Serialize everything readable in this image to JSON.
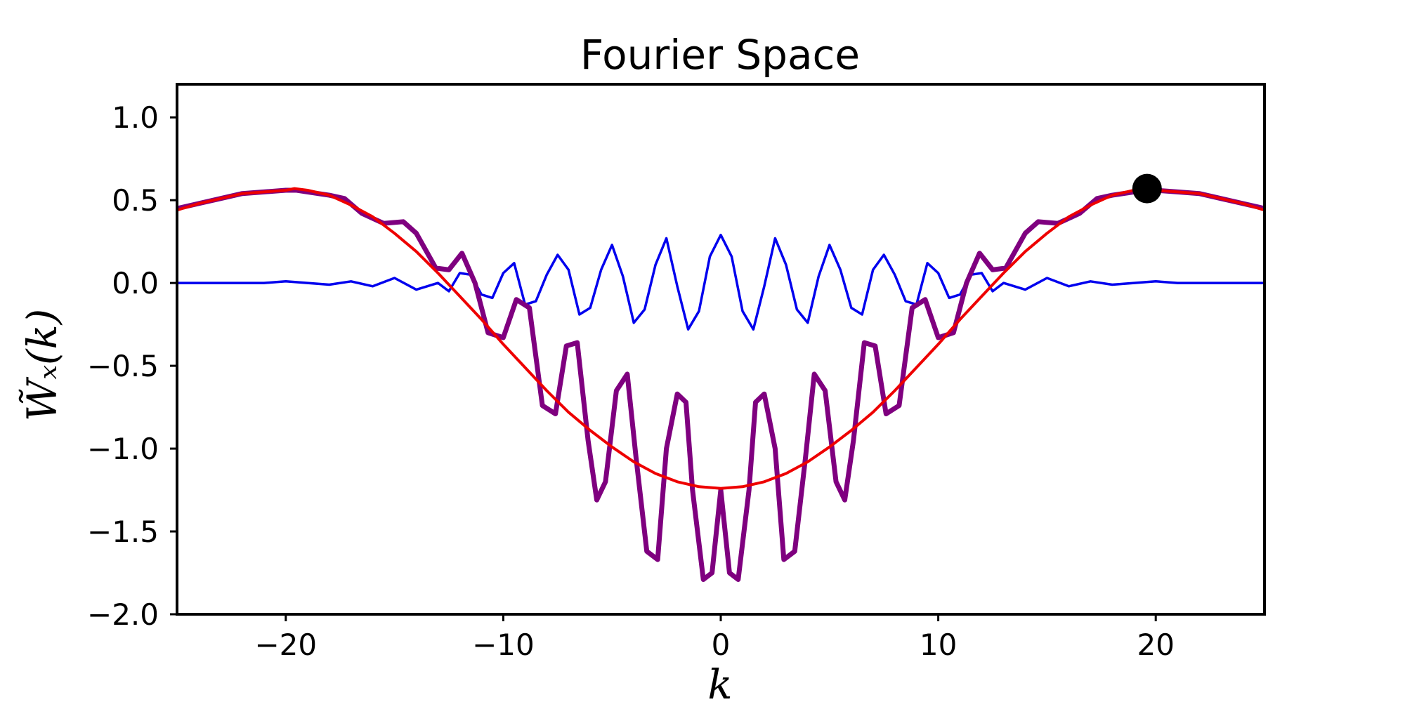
{
  "chart_data": {
    "type": "line",
    "title": "Fourier Space",
    "xlabel": "k",
    "ylabel": "W̃ₓ(k)",
    "xlim": [
      -25,
      25
    ],
    "ylim": [
      -2.0,
      1.2
    ],
    "grid": false,
    "x_ticks": [
      -20,
      -10,
      0,
      10,
      20
    ],
    "x_tick_labels": [
      "−20",
      "−10",
      "0",
      "10",
      "20"
    ],
    "y_ticks": [
      1.0,
      0.5,
      0.0,
      -0.5,
      -1.0,
      -1.5,
      -2.0
    ],
    "y_tick_labels": [
      "1.0",
      "0.5",
      "0.0",
      "−0.5",
      "−1.0",
      "−1.5",
      "−2.0"
    ],
    "series": [
      {
        "color": "#0000ee",
        "x": [
          -25,
          -24,
          -23,
          -22,
          -21,
          -20,
          -19,
          -18,
          -17,
          -16,
          -15,
          -14,
          -13,
          -12.5,
          -12,
          -11.5,
          -11,
          -10.5,
          -10,
          -9.5,
          -9,
          -8.5,
          -8,
          -7.5,
          -7,
          -6.5,
          -6,
          -5.5,
          -5,
          -4.5,
          -4,
          -3.5,
          -3,
          -2.5,
          -2,
          -1.5,
          -1,
          -0.5,
          0,
          0.5,
          1,
          1.5,
          2,
          2.5,
          3,
          3.5,
          4,
          4.5,
          5,
          5.5,
          6,
          6.5,
          7,
          7.5,
          8,
          8.5,
          9,
          9.5,
          10,
          10.5,
          11,
          11.5,
          12,
          12.5,
          13,
          14,
          15,
          16,
          17,
          18,
          19,
          20,
          21,
          22,
          23,
          24,
          25
        ],
        "values": [
          0.0,
          0.0,
          0.0,
          0.0,
          0.0,
          0.01,
          0.0,
          -0.01,
          0.01,
          -0.02,
          0.03,
          -0.04,
          0.0,
          -0.05,
          0.06,
          0.05,
          -0.07,
          -0.09,
          0.06,
          0.12,
          -0.13,
          -0.11,
          0.05,
          0.17,
          0.08,
          -0.19,
          -0.15,
          0.08,
          0.23,
          0.04,
          -0.24,
          -0.16,
          0.11,
          0.27,
          -0.02,
          -0.28,
          -0.17,
          0.16,
          0.29,
          0.16,
          -0.17,
          -0.28,
          -0.02,
          0.27,
          0.11,
          -0.16,
          -0.24,
          0.04,
          0.23,
          0.08,
          -0.15,
          -0.19,
          0.08,
          0.17,
          0.05,
          -0.11,
          -0.13,
          0.12,
          0.06,
          -0.09,
          -0.07,
          0.05,
          0.06,
          -0.05,
          0.0,
          -0.04,
          0.03,
          -0.02,
          0.01,
          -0.01,
          0.0,
          0.01,
          0.0,
          0.0,
          0.0,
          0.0,
          0.0
        ]
      },
      {
        "color": "#7f007f",
        "x": [
          -25,
          -24,
          -23,
          -22,
          -21,
          -20,
          -19.5,
          -19,
          -18,
          -17.3,
          -16.5,
          -15.5,
          -14.6,
          -14,
          -13.1,
          -12.5,
          -11.9,
          -11.3,
          -10.7,
          -10,
          -9.4,
          -8.8,
          -8.2,
          -7.6,
          -7.1,
          -6.6,
          -6.1,
          -5.7,
          -5.3,
          -4.8,
          -4.3,
          -3.9,
          -3.4,
          -2.9,
          -2.5,
          -2.0,
          -1.6,
          -1.3,
          -0.8,
          -0.4,
          0,
          0.4,
          0.8,
          1.3,
          1.6,
          2.0,
          2.5,
          2.9,
          3.4,
          3.9,
          4.3,
          4.8,
          5.3,
          5.7,
          6.1,
          6.6,
          7.1,
          7.6,
          8.2,
          8.8,
          9.4,
          10,
          10.7,
          11.3,
          11.9,
          12.5,
          13.1,
          14,
          14.6,
          15.5,
          16.5,
          17.3,
          18,
          19,
          19.5,
          20,
          21,
          22,
          23,
          24,
          25
        ],
        "values": [
          0.45,
          0.48,
          0.51,
          0.54,
          0.55,
          0.56,
          0.56,
          0.55,
          0.53,
          0.51,
          0.42,
          0.36,
          0.37,
          0.3,
          0.09,
          0.08,
          0.18,
          0.0,
          -0.3,
          -0.33,
          -0.1,
          -0.15,
          -0.74,
          -0.79,
          -0.38,
          -0.36,
          -0.95,
          -1.31,
          -1.2,
          -0.65,
          -0.55,
          -1.05,
          -1.62,
          -1.67,
          -1.0,
          -0.67,
          -0.72,
          -1.25,
          -1.79,
          -1.75,
          -1.25,
          -1.75,
          -1.79,
          -1.25,
          -0.72,
          -0.67,
          -1.0,
          -1.67,
          -1.62,
          -1.05,
          -0.55,
          -0.65,
          -1.2,
          -1.31,
          -0.95,
          -0.36,
          -0.38,
          -0.79,
          -0.74,
          -0.15,
          -0.1,
          -0.33,
          -0.3,
          0.0,
          0.18,
          0.08,
          0.09,
          0.3,
          0.37,
          0.36,
          0.42,
          0.51,
          0.53,
          0.55,
          0.56,
          0.56,
          0.55,
          0.54,
          0.51,
          0.48,
          0.45
        ]
      },
      {
        "color": "#ee0000",
        "x": [
          -25,
          -24,
          -23,
          -22,
          -21,
          -20,
          -19.6,
          -19,
          -18,
          -17,
          -16,
          -15,
          -14,
          -13,
          -12,
          -11,
          -10,
          -9,
          -8,
          -7,
          -6,
          -5,
          -4,
          -3,
          -2,
          -1,
          0,
          1,
          2,
          3,
          4,
          5,
          6,
          7,
          8,
          9,
          10,
          11,
          12,
          13,
          14,
          15,
          16,
          17,
          18,
          19,
          19.6,
          20,
          21,
          22,
          23,
          24,
          25
        ],
        "values": [
          0.44,
          0.48,
          0.51,
          0.54,
          0.55,
          0.56,
          0.57,
          0.56,
          0.53,
          0.47,
          0.4,
          0.3,
          0.19,
          0.06,
          -0.08,
          -0.22,
          -0.37,
          -0.51,
          -0.65,
          -0.78,
          -0.89,
          -0.99,
          -1.08,
          -1.15,
          -1.2,
          -1.23,
          -1.24,
          -1.23,
          -1.2,
          -1.15,
          -1.08,
          -0.99,
          -0.89,
          -0.78,
          -0.65,
          -0.51,
          -0.37,
          -0.22,
          -0.08,
          0.06,
          0.19,
          0.3,
          0.4,
          0.47,
          0.53,
          0.56,
          0.57,
          0.56,
          0.55,
          0.54,
          0.51,
          0.48,
          0.44
        ]
      }
    ],
    "marker": {
      "x": 19.6,
      "y": 0.57,
      "color": "#000000"
    }
  }
}
